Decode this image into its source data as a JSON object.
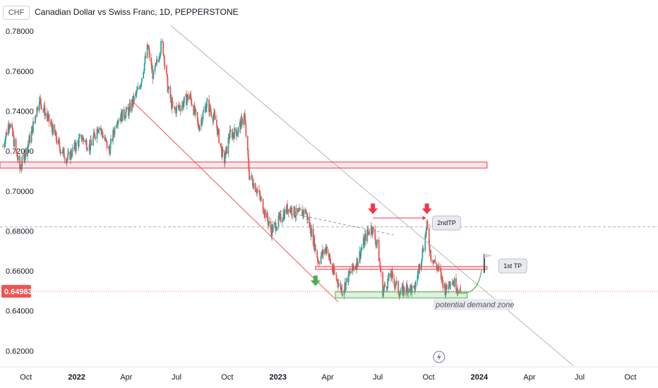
{
  "header": {
    "currency": "CHF",
    "title": "Canadian Dollar vs Swiss Franc, 1D, PEPPERSTONE"
  },
  "colors": {
    "up": "#26a69a",
    "down": "#ef5350",
    "resistance": "#f23645",
    "support": "#4caf50",
    "trendline": "#b2b5be"
  },
  "chart_data": {
    "type": "candlestick",
    "symbol": "Canadian Dollar vs Swiss Franc, 1D, PEPPERSTONE",
    "ylim": [
      0.612,
      0.785
    ],
    "yticks": [
      "0.78000",
      "0.76000",
      "0.74000",
      "0.72000",
      "0.70000",
      "0.68000",
      "0.66000",
      "0.64000",
      "0.62000"
    ],
    "ytick_values": [
      0.78,
      0.76,
      0.74,
      0.72,
      0.7,
      0.68,
      0.66,
      0.64,
      0.62
    ],
    "xlim": [
      "2021-08-15",
      "2024-11-20"
    ],
    "xticks": [
      {
        "label": "Oct",
        "date": "2021-10-01",
        "bold": false
      },
      {
        "label": "2022",
        "date": "2022-01-01",
        "bold": true
      },
      {
        "label": "Apr",
        "date": "2022-04-01",
        "bold": false
      },
      {
        "label": "Jul",
        "date": "2022-07-01",
        "bold": false
      },
      {
        "label": "Oct",
        "date": "2022-10-01",
        "bold": false
      },
      {
        "label": "2023",
        "date": "2023-01-01",
        "bold": true
      },
      {
        "label": "Apr",
        "date": "2023-04-01",
        "bold": false
      },
      {
        "label": "Jul",
        "date": "2023-07-01",
        "bold": false
      },
      {
        "label": "Oct",
        "date": "2023-10-01",
        "bold": false
      },
      {
        "label": "2024",
        "date": "2024-01-01",
        "bold": true
      },
      {
        "label": "Apr",
        "date": "2024-04-01",
        "bold": false
      },
      {
        "label": "Jul",
        "date": "2024-07-01",
        "bold": false
      },
      {
        "label": "Oct",
        "date": "2024-10-01",
        "bold": false
      }
    ],
    "last_price": "0.64983",
    "last_price_value": 0.64983,
    "price_path": [
      [
        "2021-08-20",
        0.722
      ],
      [
        "2021-09-01",
        0.735
      ],
      [
        "2021-09-20",
        0.711
      ],
      [
        "2021-10-10",
        0.728
      ],
      [
        "2021-10-25",
        0.746
      ],
      [
        "2021-11-15",
        0.733
      ],
      [
        "2021-12-01",
        0.722
      ],
      [
        "2021-12-15",
        0.716
      ],
      [
        "2022-01-10",
        0.727
      ],
      [
        "2022-01-25",
        0.722
      ],
      [
        "2022-02-10",
        0.733
      ],
      [
        "2022-03-01",
        0.72
      ],
      [
        "2022-03-15",
        0.736
      ],
      [
        "2022-04-05",
        0.74
      ],
      [
        "2022-04-25",
        0.752
      ],
      [
        "2022-05-10",
        0.772
      ],
      [
        "2022-05-20",
        0.757
      ],
      [
        "2022-06-05",
        0.775
      ],
      [
        "2022-06-15",
        0.752
      ],
      [
        "2022-06-25",
        0.74
      ],
      [
        "2022-07-10",
        0.743
      ],
      [
        "2022-07-25",
        0.748
      ],
      [
        "2022-08-10",
        0.732
      ],
      [
        "2022-08-25",
        0.744
      ],
      [
        "2022-09-10",
        0.735
      ],
      [
        "2022-09-25",
        0.714
      ],
      [
        "2022-10-05",
        0.728
      ],
      [
        "2022-10-20",
        0.73
      ],
      [
        "2022-11-01",
        0.738
      ],
      [
        "2022-11-10",
        0.708
      ],
      [
        "2022-11-25",
        0.7
      ],
      [
        "2022-12-10",
        0.688
      ],
      [
        "2022-12-20",
        0.68
      ],
      [
        "2023-01-05",
        0.686
      ],
      [
        "2023-01-20",
        0.692
      ],
      [
        "2023-02-05",
        0.688
      ],
      [
        "2023-02-20",
        0.69
      ],
      [
        "2023-03-05",
        0.677
      ],
      [
        "2023-03-15",
        0.665
      ],
      [
        "2023-03-30",
        0.672
      ],
      [
        "2023-04-10",
        0.66
      ],
      [
        "2023-04-28",
        0.65
      ],
      [
        "2023-05-10",
        0.658
      ],
      [
        "2023-05-25",
        0.665
      ],
      [
        "2023-06-10",
        0.678
      ],
      [
        "2023-06-20",
        0.682
      ],
      [
        "2023-07-01",
        0.672
      ],
      [
        "2023-07-10",
        0.65
      ],
      [
        "2023-07-25",
        0.658
      ],
      [
        "2023-08-10",
        0.649
      ],
      [
        "2023-08-25",
        0.652
      ],
      [
        "2023-09-05",
        0.65
      ],
      [
        "2023-09-20",
        0.67
      ],
      [
        "2023-09-28",
        0.682
      ],
      [
        "2023-10-05",
        0.668
      ],
      [
        "2023-10-20",
        0.66
      ],
      [
        "2023-11-01",
        0.65
      ],
      [
        "2023-11-10",
        0.656
      ],
      [
        "2023-11-20",
        0.653
      ],
      [
        "2023-11-28",
        0.6498
      ]
    ],
    "annotations": {
      "resistance_zone": {
        "from": "2021-08-15",
        "to": "2024-01-15",
        "y_low": 0.7115,
        "y_high": 0.7145
      },
      "first_tp_level": {
        "from": "2023-03-10",
        "to": "2024-01-15",
        "y": 0.6615,
        "label": "1st TP"
      },
      "second_tp_level": {
        "y": 0.682,
        "label": "2ndTP"
      },
      "demand_zone": {
        "from": "2023-04-15",
        "to": "2023-12-10",
        "y_low": 0.6465,
        "y_high": 0.6495,
        "label": "potential demand zone"
      },
      "falling_channel_line": {
        "from": [
          "2022-04-10",
          0.7455
        ],
        "to": [
          "2023-04-20",
          0.6445
        ]
      },
      "long_trendline": {
        "from": [
          "2022-06-20",
          0.783
        ],
        "to": [
          "2024-06-20",
          0.6125
        ]
      },
      "dashed_lower_high": {
        "from": [
          "2023-01-05",
          0.69
        ],
        "to": [
          "2023-07-30",
          0.678
        ]
      },
      "down_arrows": [
        "2023-06-22",
        "2023-09-28"
      ],
      "up_arrow": "2023-03-10"
    }
  }
}
